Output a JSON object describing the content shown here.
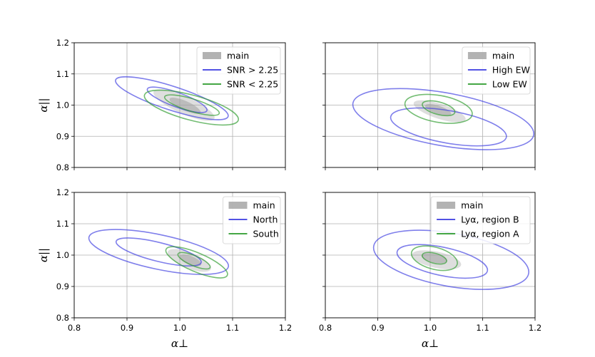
{
  "chart_data": {
    "type": "contour",
    "xlabel": "α⊥",
    "ylabel": "α||",
    "xlim": [
      0.8,
      1.2
    ],
    "ylim": [
      0.8,
      1.2
    ],
    "xticks": [
      "0.8",
      "0.9",
      "1.0",
      "1.1",
      "1.2"
    ],
    "yticks": [
      "0.8",
      "0.9",
      "1.0",
      "1.1",
      "1.2"
    ],
    "colors": {
      "main": "#a0a0a0",
      "blue": "#3a3ae0",
      "green": "#2a9a2a"
    },
    "panels": [
      {
        "id": "top-left",
        "legend": [
          "main",
          "SNR > 2.25",
          "SNR < 2.25"
        ],
        "contours": [
          {
            "series": "main",
            "filled": true,
            "level": 2,
            "cx": 1.008,
            "cy": 1.0,
            "rx": 0.063,
            "ry": 0.028,
            "angle": 24
          },
          {
            "series": "main",
            "filled": true,
            "level": 1,
            "cx": 1.01,
            "cy": 0.998,
            "rx": 0.032,
            "ry": 0.015,
            "angle": 24
          },
          {
            "series": "SNR > 2.25",
            "filled": false,
            "level": 2,
            "cx": 0.985,
            "cy": 1.022,
            "rx": 0.112,
            "ry": 0.038,
            "angle": 18
          },
          {
            "series": "SNR > 2.25",
            "filled": false,
            "level": 1,
            "cx": 0.995,
            "cy": 1.017,
            "rx": 0.06,
            "ry": 0.023,
            "angle": 20
          },
          {
            "series": "SNR < 2.25",
            "filled": false,
            "level": 2,
            "cx": 1.022,
            "cy": 0.992,
            "rx": 0.092,
            "ry": 0.04,
            "angle": 15
          },
          {
            "series": "SNR < 2.25",
            "filled": false,
            "level": 1,
            "cx": 1.023,
            "cy": 1.0,
            "rx": 0.054,
            "ry": 0.02,
            "angle": 17
          }
        ]
      },
      {
        "id": "top-right",
        "legend": [
          "main",
          "High EW",
          "Low EW"
        ],
        "contours": [
          {
            "series": "main",
            "filled": true,
            "level": 2,
            "cx": 1.018,
            "cy": 0.98,
            "rx": 0.052,
            "ry": 0.024,
            "angle": 18
          },
          {
            "series": "main",
            "filled": true,
            "level": 1,
            "cx": 1.015,
            "cy": 0.985,
            "rx": 0.026,
            "ry": 0.013,
            "angle": 18
          },
          {
            "series": "High EW",
            "filled": false,
            "level": 2,
            "cx": 1.025,
            "cy": 0.955,
            "rx": 0.175,
            "ry": 0.085,
            "angle": 10
          },
          {
            "series": "High EW",
            "filled": false,
            "level": 1,
            "cx": 1.035,
            "cy": 0.93,
            "rx": 0.112,
            "ry": 0.052,
            "angle": 10
          },
          {
            "series": "Low EW",
            "filled": false,
            "level": 2,
            "cx": 1.016,
            "cy": 0.988,
            "rx": 0.065,
            "ry": 0.043,
            "angle": 10
          },
          {
            "series": "Low EW",
            "filled": false,
            "level": 1,
            "cx": 1.016,
            "cy": 0.99,
            "rx": 0.032,
            "ry": 0.02,
            "angle": 15
          }
        ]
      },
      {
        "id": "bottom-left",
        "legend": [
          "main",
          "North",
          "South"
        ],
        "contours": [
          {
            "series": "main",
            "filled": true,
            "level": 2,
            "cx": 1.018,
            "cy": 0.983,
            "rx": 0.044,
            "ry": 0.025,
            "angle": 22
          },
          {
            "series": "main",
            "filled": true,
            "level": 1,
            "cx": 1.02,
            "cy": 0.983,
            "rx": 0.022,
            "ry": 0.014,
            "angle": 22
          },
          {
            "series": "North",
            "filled": false,
            "level": 2,
            "cx": 0.96,
            "cy": 1.01,
            "rx": 0.135,
            "ry": 0.055,
            "angle": 12
          },
          {
            "series": "North",
            "filled": false,
            "level": 1,
            "cx": 0.96,
            "cy": 1.01,
            "rx": 0.083,
            "ry": 0.03,
            "angle": 14
          },
          {
            "series": "South",
            "filled": false,
            "level": 2,
            "cx": 1.032,
            "cy": 0.977,
            "rx": 0.063,
            "ry": 0.03,
            "angle": 23
          },
          {
            "series": "South",
            "filled": false,
            "level": 1,
            "cx": 1.027,
            "cy": 0.982,
            "rx": 0.033,
            "ry": 0.016,
            "angle": 23
          }
        ]
      },
      {
        "id": "bottom-right",
        "legend": [
          "main",
          "Lyα, region B",
          "Lyα, region A"
        ],
        "contours": [
          {
            "series": "main",
            "filled": true,
            "level": 2,
            "cx": 1.012,
            "cy": 0.985,
            "rx": 0.048,
            "ry": 0.026,
            "angle": 12
          },
          {
            "series": "main",
            "filled": true,
            "level": 1,
            "cx": 1.008,
            "cy": 0.99,
            "rx": 0.025,
            "ry": 0.014,
            "angle": 12
          },
          {
            "series": "Lyα, region B",
            "filled": false,
            "level": 2,
            "cx": 1.04,
            "cy": 0.985,
            "rx": 0.15,
            "ry": 0.085,
            "angle": 10
          },
          {
            "series": "Lyα, region B",
            "filled": false,
            "level": 1,
            "cx": 1.023,
            "cy": 0.98,
            "rx": 0.088,
            "ry": 0.045,
            "angle": 12
          },
          {
            "series": "Lyα, region A",
            "filled": false,
            "level": 2,
            "cx": 1.008,
            "cy": 0.99,
            "rx": 0.045,
            "ry": 0.035,
            "angle": 15
          },
          {
            "series": "Lyα, region A",
            "filled": false,
            "level": 1,
            "cx": 1.008,
            "cy": 0.99,
            "rx": 0.024,
            "ry": 0.016,
            "angle": 15
          }
        ]
      }
    ]
  }
}
